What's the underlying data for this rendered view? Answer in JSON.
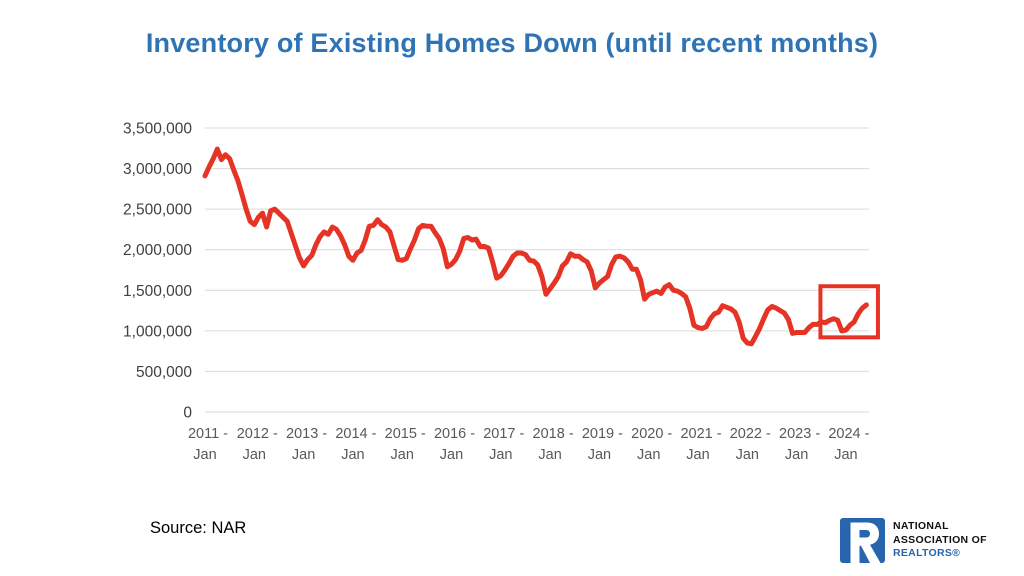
{
  "title": "Inventory of Existing Homes Down (until recent months)",
  "source": "Source: NAR",
  "logo": {
    "line1": "NATIONAL",
    "line2": "ASSOCIATION OF",
    "line3": "REALTORS®"
  },
  "colors": {
    "title": "#2E74B5",
    "line": "#E53425",
    "highlight_box": "#E53425",
    "grid": "#D9D9D9",
    "y_label": "#404040",
    "x_label": "#595959",
    "logo_blue": "#2765AE",
    "logo_black": "#111111"
  },
  "chart_data": {
    "type": "line",
    "title": "Inventory of Existing Homes Down (until recent months)",
    "xlabel": "",
    "ylabel": "",
    "x_start": "2011-01",
    "x_frequency": "monthly",
    "ylim": [
      0,
      3500000
    ],
    "grid": "horizontal",
    "legend": "none",
    "y_ticks": [
      {
        "value": 0,
        "label": "0"
      },
      {
        "value": 500000,
        "label": "500,000"
      },
      {
        "value": 1000000,
        "label": "1,000,000"
      },
      {
        "value": 1500000,
        "label": "1,500,000"
      },
      {
        "value": 2000000,
        "label": "2,000,000"
      },
      {
        "value": 2500000,
        "label": "2,500,000"
      },
      {
        "value": 3000000,
        "label": "3,000,000"
      },
      {
        "value": 3500000,
        "label": "3,500,000"
      }
    ],
    "x_ticks": [
      {
        "top": "2011 -",
        "bottom": "Jan"
      },
      {
        "top": "2012 -",
        "bottom": "Jan"
      },
      {
        "top": "2013 -",
        "bottom": "Jan"
      },
      {
        "top": "2014 -",
        "bottom": "Jan"
      },
      {
        "top": "2015 -",
        "bottom": "Jan"
      },
      {
        "top": "2016 -",
        "bottom": "Jan"
      },
      {
        "top": "2017 -",
        "bottom": "Jan"
      },
      {
        "top": "2018 -",
        "bottom": "Jan"
      },
      {
        "top": "2019 -",
        "bottom": "Jan"
      },
      {
        "top": "2020 -",
        "bottom": "Jan"
      },
      {
        "top": "2021 -",
        "bottom": "Jan"
      },
      {
        "top": "2022 -",
        "bottom": "Jan"
      },
      {
        "top": "2023 -",
        "bottom": "Jan"
      },
      {
        "top": "2024 -",
        "bottom": "Jan"
      }
    ],
    "series": [
      {
        "name": "Inventory of Existing Homes",
        "values": [
          2910000,
          3020000,
          3120000,
          3240000,
          3110000,
          3170000,
          3120000,
          2980000,
          2850000,
          2680000,
          2500000,
          2350000,
          2310000,
          2400000,
          2450000,
          2280000,
          2480000,
          2500000,
          2450000,
          2400000,
          2350000,
          2200000,
          2050000,
          1900000,
          1800000,
          1880000,
          1930000,
          2060000,
          2160000,
          2220000,
          2190000,
          2280000,
          2250000,
          2170000,
          2060000,
          1920000,
          1870000,
          1960000,
          1990000,
          2120000,
          2290000,
          2300000,
          2370000,
          2310000,
          2280000,
          2220000,
          2050000,
          1880000,
          1870000,
          1890000,
          2010000,
          2120000,
          2260000,
          2300000,
          2290000,
          2290000,
          2210000,
          2140000,
          2010000,
          1790000,
          1820000,
          1880000,
          1980000,
          2140000,
          2150000,
          2120000,
          2130000,
          2040000,
          2040000,
          2020000,
          1850000,
          1650000,
          1680000,
          1750000,
          1830000,
          1920000,
          1960000,
          1960000,
          1940000,
          1870000,
          1860000,
          1810000,
          1670000,
          1450000,
          1520000,
          1590000,
          1670000,
          1800000,
          1850000,
          1950000,
          1920000,
          1920000,
          1880000,
          1850000,
          1740000,
          1530000,
          1590000,
          1630000,
          1670000,
          1820000,
          1910000,
          1920000,
          1900000,
          1850000,
          1760000,
          1760000,
          1630000,
          1390000,
          1450000,
          1470000,
          1490000,
          1460000,
          1540000,
          1570000,
          1500000,
          1490000,
          1460000,
          1420000,
          1280000,
          1070000,
          1040000,
          1030000,
          1050000,
          1150000,
          1210000,
          1230000,
          1310000,
          1290000,
          1270000,
          1230000,
          1110000,
          910000,
          850000,
          840000,
          930000,
          1030000,
          1150000,
          1260000,
          1300000,
          1280000,
          1250000,
          1220000,
          1140000,
          970000,
          980000,
          980000,
          980000,
          1040000,
          1080000,
          1080000,
          1110000,
          1100000,
          1130000,
          1150000,
          1130000,
          1000000,
          1010000,
          1070000,
          1110000,
          1210000,
          1280000,
          1320000
        ]
      }
    ],
    "highlight_box": {
      "from_month_index": 149.8,
      "to_month_index": 163.8,
      "value_range": [
        920000,
        1550000
      ]
    }
  }
}
